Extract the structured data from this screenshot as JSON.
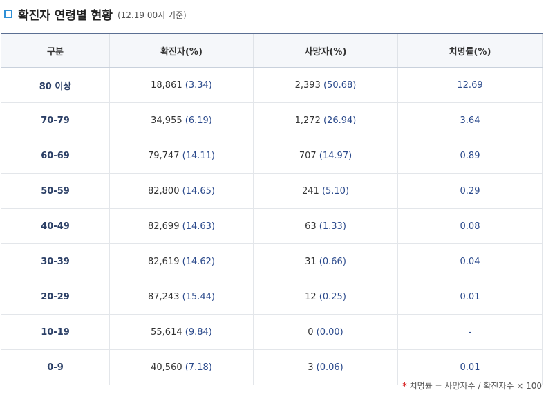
{
  "header": {
    "title": "확진자 연령별 현황",
    "subtitle": "(12.19 00시 기준)"
  },
  "table": {
    "columns": [
      "구분",
      "확진자(%)",
      "사망자(%)",
      "치명률(%)"
    ],
    "rows": [
      {
        "age": "80 이상",
        "cases": "18,861",
        "cases_pct": "(3.34)",
        "deaths": "2,393",
        "deaths_pct": "(50.68)",
        "rate": "12.69"
      },
      {
        "age": "70-79",
        "cases": "34,955",
        "cases_pct": "(6.19)",
        "deaths": "1,272",
        "deaths_pct": "(26.94)",
        "rate": "3.64"
      },
      {
        "age": "60-69",
        "cases": "79,747",
        "cases_pct": "(14.11)",
        "deaths": "707",
        "deaths_pct": "(14.97)",
        "rate": "0.89"
      },
      {
        "age": "50-59",
        "cases": "82,800",
        "cases_pct": "(14.65)",
        "deaths": "241",
        "deaths_pct": "(5.10)",
        "rate": "0.29"
      },
      {
        "age": "40-49",
        "cases": "82,699",
        "cases_pct": "(14.63)",
        "deaths": "63",
        "deaths_pct": "(1.33)",
        "rate": "0.08"
      },
      {
        "age": "30-39",
        "cases": "82,619",
        "cases_pct": "(14.62)",
        "deaths": "31",
        "deaths_pct": "(0.66)",
        "rate": "0.04"
      },
      {
        "age": "20-29",
        "cases": "87,243",
        "cases_pct": "(15.44)",
        "deaths": "12",
        "deaths_pct": "(0.25)",
        "rate": "0.01"
      },
      {
        "age": "10-19",
        "cases": "55,614",
        "cases_pct": "(9.84)",
        "deaths": "0",
        "deaths_pct": "(0.00)",
        "rate": "-"
      },
      {
        "age": "0-9",
        "cases": "40,560",
        "cases_pct": "(7.18)",
        "deaths": "3",
        "deaths_pct": "(0.06)",
        "rate": "0.01"
      }
    ]
  },
  "footnote": {
    "star": "*",
    "text": "치명률 = 사망자수 / 확진자수 × 100"
  },
  "colors": {
    "accent": "#2e8fd6",
    "header_border": "#5b6f93",
    "value_blue": "#2b4a8c"
  }
}
